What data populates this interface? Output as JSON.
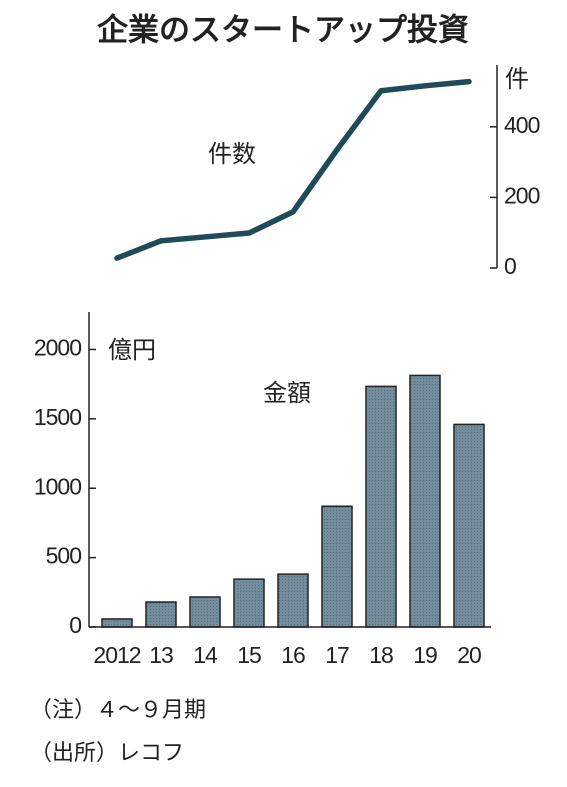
{
  "title": "企業のスタートアップ投資",
  "chart_data": [
    {
      "type": "line",
      "label": "件数",
      "unit": "件",
      "axis": "right",
      "values": [
        28,
        77,
        88,
        99,
        159,
        335,
        502,
        516,
        528
      ],
      "color": "#1e4a5a",
      "ylim": [
        0,
        575
      ],
      "yticks": [
        0,
        200,
        400
      ]
    },
    {
      "type": "bar",
      "label": "金額",
      "unit": "億円",
      "axis": "left",
      "categories": [
        "2012",
        "13",
        "14",
        "15",
        "16",
        "17",
        "18",
        "19",
        "20"
      ],
      "values": [
        58,
        180,
        216,
        345,
        381,
        870,
        1734,
        1813,
        1460
      ],
      "color": "#738d9d",
      "ylim": [
        0,
        2270
      ],
      "yticks": [
        0,
        500,
        1000,
        1500,
        2000
      ]
    }
  ],
  "notes": [
    "（注）４～９月期",
    "（出所）レコフ"
  ]
}
